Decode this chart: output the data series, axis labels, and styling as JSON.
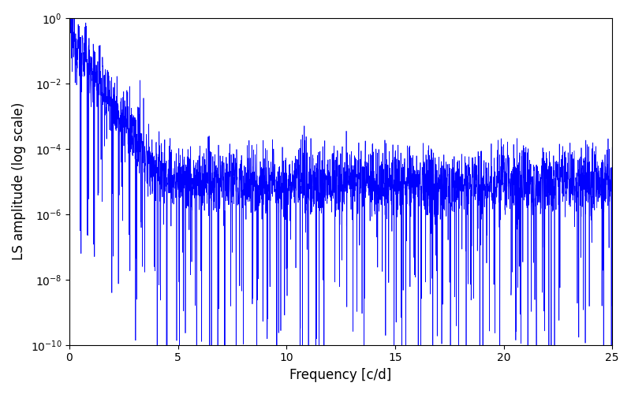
{
  "title": "",
  "xlabel": "Frequency [c/d]",
  "ylabel": "LS amplitude (log scale)",
  "xlim": [
    0,
    25
  ],
  "ylim": [
    1e-10,
    1.0
  ],
  "line_color": "#0000ff",
  "line_width": 0.5,
  "figsize": [
    8.0,
    5.0
  ],
  "dpi": 100,
  "seed": 12345,
  "n_points": 3000,
  "freq_max": 25.0,
  "peak_amplitude": 0.35,
  "decay_rate": 2.5,
  "noise_std": 1.2,
  "noise_floor": 1e-05,
  "background_color": "#ffffff"
}
